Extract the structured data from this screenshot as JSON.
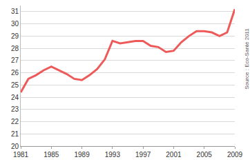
{
  "chart_data": {
    "type": "line",
    "x": [
      1981,
      1982,
      1983,
      1984,
      1985,
      1986,
      1987,
      1988,
      1989,
      1990,
      1991,
      1992,
      1993,
      1994,
      1995,
      1996,
      1997,
      1998,
      1999,
      2000,
      2001,
      2002,
      2003,
      2004,
      2005,
      2006,
      2007,
      2008,
      2009
    ],
    "values": [
      24.4,
      25.5,
      25.8,
      26.2,
      26.5,
      26.2,
      25.9,
      25.5,
      25.4,
      25.8,
      26.3,
      27.1,
      28.6,
      28.4,
      28.5,
      28.6,
      28.6,
      28.2,
      28.1,
      27.7,
      27.8,
      28.5,
      29.0,
      29.4,
      29.4,
      29.3,
      29.0,
      29.3,
      31.2
    ],
    "color": "#ee5a5a",
    "xlim": [
      1981,
      2009
    ],
    "xticks": [
      1981,
      1985,
      1989,
      1993,
      1997,
      2001,
      2005,
      2009
    ],
    "ylim": [
      20,
      31.5
    ],
    "yticks": [
      20,
      21,
      22,
      23,
      24,
      25,
      26,
      27,
      28,
      29,
      30,
      31
    ],
    "grid": true,
    "annotations": [
      "Source : Eco-Santé 2011"
    ]
  }
}
